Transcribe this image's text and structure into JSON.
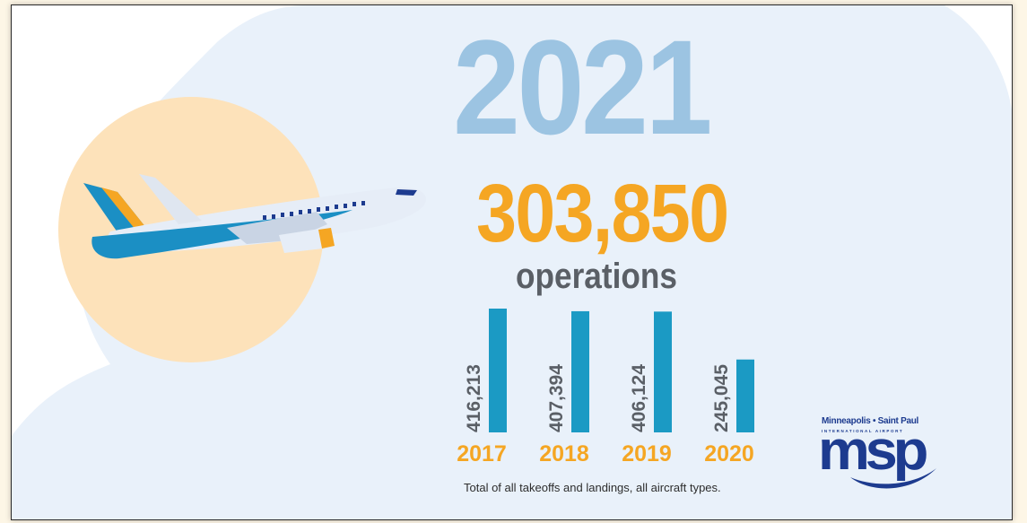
{
  "headline": {
    "year": "2021",
    "total": "303,850",
    "total_label": "operations"
  },
  "chart_data": {
    "type": "bar",
    "categories": [
      "2017",
      "2018",
      "2019",
      "2020"
    ],
    "values": [
      416213,
      407394,
      406124,
      245045
    ],
    "value_labels": [
      "416,213",
      "407,394",
      "406,124",
      "245,045"
    ],
    "ylim": [
      0,
      416213
    ],
    "grid": false,
    "bar_color": "#1b9ac4",
    "category_color": "#f5a623",
    "value_label_color": "#5a5f66"
  },
  "footnote": "Total of all takeoffs and landings, all aircraft types.",
  "logo": {
    "top_text": "Minneapolis • Saint Paul",
    "sub_text": "INTERNATIONAL AIRPORT",
    "main_text": "msp"
  },
  "colors": {
    "background_blob": "#e9f1fa",
    "sun": "#fde2ba",
    "year": "#9cc4e2",
    "total": "#f5a623",
    "bars": "#1b9ac4",
    "plane_body": "#e6edf7",
    "plane_blue": "#1b8fc4",
    "plane_orange": "#f5a623",
    "logo": "#1d3b8f"
  }
}
